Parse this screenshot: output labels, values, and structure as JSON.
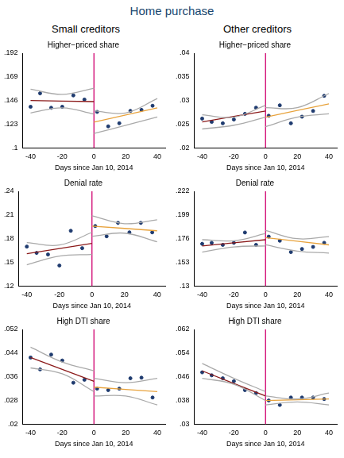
{
  "title": "Home purchase",
  "column_titles": [
    "Small creditors",
    "Other creditors"
  ],
  "chart_data": [
    {
      "type": "scatter",
      "title": "Higher−priced share",
      "x_label": "Days since Jan 10, 2014",
      "xlim": [
        -45,
        45
      ],
      "xticks": [
        -40,
        -20,
        0,
        20,
        40
      ],
      "ylim": [
        0.1,
        0.192
      ],
      "yticks": [
        {
          "value": 0.1,
          "label": ".1"
        },
        {
          "value": 0.123,
          "label": ".123"
        },
        {
          "value": 0.146,
          "label": ".146"
        },
        {
          "value": 0.169,
          "label": ".169"
        },
        {
          "value": 0.192,
          "label": ".192"
        }
      ],
      "grid": false,
      "series": [
        {
          "type": "line",
          "color": "#aaaaaa",
          "line_style": "solid",
          "x": [
            -40,
            -20,
            0
          ],
          "values": [
            0.157,
            0.152,
            0.158
          ]
        },
        {
          "type": "line",
          "color": "#aaaaaa",
          "line_style": "solid",
          "x": [
            -40,
            -20,
            0
          ],
          "values": [
            0.134,
            0.139,
            0.133
          ]
        },
        {
          "type": "line",
          "color": "#aaaaaa",
          "line_style": "solid",
          "x": [
            0,
            20,
            40
          ],
          "values": [
            0.136,
            0.134,
            0.148
          ]
        },
        {
          "type": "line",
          "color": "#aaaaaa",
          "line_style": "solid",
          "x": [
            0,
            20,
            40
          ],
          "values": [
            0.114,
            0.122,
            0.13
          ]
        },
        {
          "type": "line",
          "color": "#8b1a1a",
          "line_style": "solid",
          "x": [
            -40,
            0
          ],
          "values": [
            0.146,
            0.145
          ]
        },
        {
          "type": "line",
          "color": "#e8a33d",
          "line_style": "solid",
          "x": [
            0,
            40
          ],
          "values": [
            0.125,
            0.139
          ]
        },
        {
          "type": "line",
          "color": "#d0006f",
          "line_style": "solid",
          "x": [
            0,
            0
          ],
          "values": [
            0.1,
            0.192
          ]
        },
        {
          "type": "scatter",
          "color": "#1f3b6f",
          "marker": "circle",
          "x": [
            -40,
            -34,
            -27,
            -20,
            -13,
            -6,
            2,
            9,
            16,
            23,
            30,
            37
          ],
          "values": [
            0.14,
            0.153,
            0.139,
            0.14,
            0.151,
            0.147,
            0.135,
            0.121,
            0.124,
            0.136,
            0.137,
            0.141
          ]
        }
      ]
    },
    {
      "type": "scatter",
      "title": "Higher−priced share",
      "x_label": "Days since Jan 10, 2014",
      "xlim": [
        -45,
        45
      ],
      "xticks": [
        -40,
        -20,
        0,
        20,
        40
      ],
      "ylim": [
        0.02,
        0.04
      ],
      "yticks": [
        {
          "value": 0.02,
          "label": ".02"
        },
        {
          "value": 0.025,
          "label": ".025"
        },
        {
          "value": 0.03,
          "label": ".03"
        },
        {
          "value": 0.035,
          "label": ".035"
        },
        {
          "value": 0.04,
          "label": ".04"
        }
      ],
      "grid": false,
      "series": [
        {
          "type": "line",
          "color": "#aaaaaa",
          "line_style": "solid",
          "x": [
            -40,
            -20,
            0
          ],
          "values": [
            0.027,
            0.0265,
            0.029
          ]
        },
        {
          "type": "line",
          "color": "#aaaaaa",
          "line_style": "solid",
          "x": [
            -40,
            -20,
            0
          ],
          "values": [
            0.024,
            0.0248,
            0.0265
          ]
        },
        {
          "type": "line",
          "color": "#aaaaaa",
          "line_style": "solid",
          "x": [
            0,
            20,
            40
          ],
          "values": [
            0.0285,
            0.0285,
            0.0315
          ]
        },
        {
          "type": "line",
          "color": "#aaaaaa",
          "line_style": "solid",
          "x": [
            0,
            20,
            40
          ],
          "values": [
            0.0245,
            0.0265,
            0.0272
          ]
        },
        {
          "type": "line",
          "color": "#8b1a1a",
          "line_style": "solid",
          "x": [
            -40,
            0
          ],
          "values": [
            0.0255,
            0.0278
          ]
        },
        {
          "type": "line",
          "color": "#e8a33d",
          "line_style": "solid",
          "x": [
            0,
            40
          ],
          "values": [
            0.0265,
            0.0293
          ]
        },
        {
          "type": "line",
          "color": "#d0006f",
          "line_style": "solid",
          "x": [
            0,
            0
          ],
          "values": [
            0.02,
            0.04
          ]
        },
        {
          "type": "scatter",
          "color": "#1f3b6f",
          "marker": "circle",
          "x": [
            -40,
            -34,
            -27,
            -20,
            -13,
            -6,
            2,
            9,
            16,
            23,
            30,
            37
          ],
          "values": [
            0.0262,
            0.0255,
            0.0252,
            0.026,
            0.0272,
            0.0285,
            0.0268,
            0.029,
            0.0252,
            0.0266,
            0.0278,
            0.031
          ]
        }
      ]
    },
    {
      "type": "scatter",
      "title": "Denial rate",
      "x_label": "Days since Jan 10, 2014",
      "xlim": [
        -45,
        45
      ],
      "xticks": [
        -40,
        -20,
        0,
        20,
        40
      ],
      "ylim": [
        0.12,
        0.24
      ],
      "yticks": [
        {
          "value": 0.12,
          "label": ".12"
        },
        {
          "value": 0.15,
          "label": ".15"
        },
        {
          "value": 0.18,
          "label": ".18"
        },
        {
          "value": 0.21,
          "label": ".21"
        },
        {
          "value": 0.24,
          "label": ".24"
        }
      ],
      "grid": false,
      "series": [
        {
          "type": "line",
          "color": "#aaaaaa",
          "line_style": "solid",
          "x": [
            -40,
            -20,
            0
          ],
          "values": [
            0.175,
            0.172,
            0.188
          ]
        },
        {
          "type": "line",
          "color": "#aaaaaa",
          "line_style": "solid",
          "x": [
            -40,
            -20,
            0
          ],
          "values": [
            0.147,
            0.158,
            0.16
          ]
        },
        {
          "type": "line",
          "color": "#aaaaaa",
          "line_style": "solid",
          "x": [
            0,
            20,
            40
          ],
          "values": [
            0.209,
            0.199,
            0.204
          ]
        },
        {
          "type": "line",
          "color": "#aaaaaa",
          "line_style": "solid",
          "x": [
            0,
            20,
            40
          ],
          "values": [
            0.183,
            0.187,
            0.176
          ]
        },
        {
          "type": "line",
          "color": "#8b1a1a",
          "line_style": "solid",
          "x": [
            -40,
            0
          ],
          "values": [
            0.161,
            0.174
          ]
        },
        {
          "type": "line",
          "color": "#e8a33d",
          "line_style": "solid",
          "x": [
            0,
            40
          ],
          "values": [
            0.196,
            0.19
          ]
        },
        {
          "type": "line",
          "color": "#d0006f",
          "line_style": "solid",
          "x": [
            0,
            0
          ],
          "values": [
            0.12,
            0.24
          ]
        },
        {
          "type": "scatter",
          "color": "#1f3b6f",
          "marker": "circle",
          "x": [
            -40,
            -34,
            -27,
            -20,
            -13,
            -6,
            2,
            9,
            16,
            23,
            30,
            37
          ],
          "values": [
            0.17,
            0.162,
            0.16,
            0.146,
            0.19,
            0.168,
            0.196,
            0.183,
            0.2,
            0.188,
            0.2,
            0.188
          ]
        }
      ]
    },
    {
      "type": "scatter",
      "title": "Denial rate",
      "x_label": "Days since Jan 10, 2014",
      "xlim": [
        -45,
        45
      ],
      "xticks": [
        -40,
        -20,
        0,
        20,
        40
      ],
      "ylim": [
        0.13,
        0.222
      ],
      "yticks": [
        {
          "value": 0.13,
          "label": ".13"
        },
        {
          "value": 0.153,
          "label": ".153"
        },
        {
          "value": 0.176,
          "label": ".176"
        },
        {
          "value": 0.199,
          "label": ".199"
        },
        {
          "value": 0.222,
          "label": ".222"
        }
      ],
      "grid": false,
      "series": [
        {
          "type": "line",
          "color": "#aaaaaa",
          "line_style": "solid",
          "x": [
            -40,
            -20,
            0
          ],
          "values": [
            0.175,
            0.174,
            0.181
          ]
        },
        {
          "type": "line",
          "color": "#aaaaaa",
          "line_style": "solid",
          "x": [
            -40,
            -20,
            0
          ],
          "values": [
            0.163,
            0.168,
            0.169
          ]
        },
        {
          "type": "line",
          "color": "#aaaaaa",
          "line_style": "solid",
          "x": [
            0,
            20,
            40
          ],
          "values": [
            0.184,
            0.176,
            0.178
          ]
        },
        {
          "type": "line",
          "color": "#aaaaaa",
          "line_style": "solid",
          "x": [
            0,
            20,
            40
          ],
          "values": [
            0.17,
            0.164,
            0.162
          ]
        },
        {
          "type": "line",
          "color": "#8b1a1a",
          "line_style": "solid",
          "x": [
            -40,
            0
          ],
          "values": [
            0.169,
            0.175
          ]
        },
        {
          "type": "line",
          "color": "#e8a33d",
          "line_style": "solid",
          "x": [
            0,
            40
          ],
          "values": [
            0.177,
            0.17
          ]
        },
        {
          "type": "line",
          "color": "#d0006f",
          "line_style": "solid",
          "x": [
            0,
            0
          ],
          "values": [
            0.13,
            0.222
          ]
        },
        {
          "type": "scatter",
          "color": "#1f3b6f",
          "marker": "circle",
          "x": [
            -40,
            -34,
            -27,
            -20,
            -13,
            -6,
            2,
            9,
            16,
            23,
            30,
            37
          ],
          "values": [
            0.171,
            0.172,
            0.17,
            0.172,
            0.182,
            0.17,
            0.178,
            0.174,
            0.163,
            0.166,
            0.168,
            0.172
          ]
        }
      ]
    },
    {
      "type": "scatter",
      "title": "High DTI share",
      "x_label": "Days since Jan 10, 2014",
      "xlim": [
        -45,
        45
      ],
      "xticks": [
        -40,
        -20,
        0,
        20,
        40
      ],
      "ylim": [
        0.02,
        0.052
      ],
      "yticks": [
        {
          "value": 0.02,
          "label": ".02"
        },
        {
          "value": 0.028,
          "label": ".028"
        },
        {
          "value": 0.036,
          "label": ".036"
        },
        {
          "value": 0.044,
          "label": ".044"
        },
        {
          "value": 0.052,
          "label": ".052"
        }
      ],
      "grid": false,
      "series": [
        {
          "type": "line",
          "color": "#aaaaaa",
          "line_style": "solid",
          "x": [
            -40,
            -20,
            0
          ],
          "values": [
            0.046,
            0.041,
            0.038
          ]
        },
        {
          "type": "line",
          "color": "#aaaaaa",
          "line_style": "solid",
          "x": [
            -40,
            -20,
            0
          ],
          "values": [
            0.039,
            0.037,
            0.031
          ]
        },
        {
          "type": "line",
          "color": "#aaaaaa",
          "line_style": "solid",
          "x": [
            0,
            20,
            40
          ],
          "values": [
            0.0355,
            0.034,
            0.0355
          ]
        },
        {
          "type": "line",
          "color": "#aaaaaa",
          "line_style": "solid",
          "x": [
            0,
            20,
            40
          ],
          "values": [
            0.0295,
            0.0295,
            0.0265
          ]
        },
        {
          "type": "line",
          "color": "#8b1a1a",
          "line_style": "solid",
          "x": [
            -40,
            0
          ],
          "values": [
            0.0425,
            0.0345
          ]
        },
        {
          "type": "line",
          "color": "#e8a33d",
          "line_style": "solid",
          "x": [
            0,
            40
          ],
          "values": [
            0.0325,
            0.031
          ]
        },
        {
          "type": "line",
          "color": "#d0006f",
          "line_style": "solid",
          "x": [
            0,
            0
          ],
          "values": [
            0.02,
            0.052
          ]
        },
        {
          "type": "scatter",
          "color": "#1f3b6f",
          "marker": "circle",
          "x": [
            -40,
            -34,
            -27,
            -20,
            -13,
            -6,
            2,
            9,
            16,
            23,
            30,
            37
          ],
          "values": [
            0.0425,
            0.0385,
            0.0435,
            0.0415,
            0.034,
            0.035,
            0.032,
            0.0315,
            0.032,
            0.0355,
            0.0357,
            0.029
          ]
        }
      ]
    },
    {
      "type": "scatter",
      "title": "High DTI share",
      "x_label": "Days since Jan 10, 2014",
      "xlim": [
        -45,
        45
      ],
      "xticks": [
        -40,
        -20,
        0,
        20,
        40
      ],
      "ylim": [
        0.03,
        0.062
      ],
      "yticks": [
        {
          "value": 0.03,
          "label": ".03"
        },
        {
          "value": 0.038,
          "label": ".038"
        },
        {
          "value": 0.046,
          "label": ".046"
        },
        {
          "value": 0.054,
          "label": ".054"
        },
        {
          "value": 0.062,
          "label": ".062"
        }
      ],
      "grid": false,
      "series": [
        {
          "type": "line",
          "color": "#aaaaaa",
          "line_style": "solid",
          "x": [
            -40,
            -20,
            0
          ],
          "values": [
            0.0505,
            0.0455,
            0.041
          ]
        },
        {
          "type": "line",
          "color": "#aaaaaa",
          "line_style": "solid",
          "x": [
            -40,
            -20,
            0
          ],
          "values": [
            0.0455,
            0.0435,
            0.038
          ]
        },
        {
          "type": "line",
          "color": "#aaaaaa",
          "line_style": "solid",
          "x": [
            0,
            20,
            40
          ],
          "values": [
            0.0395,
            0.0385,
            0.0405
          ]
        },
        {
          "type": "line",
          "color": "#aaaaaa",
          "line_style": "solid",
          "x": [
            0,
            20,
            40
          ],
          "values": [
            0.0365,
            0.0375,
            0.0365
          ]
        },
        {
          "type": "line",
          "color": "#8b1a1a",
          "line_style": "solid",
          "x": [
            -40,
            0
          ],
          "values": [
            0.048,
            0.0395
          ]
        },
        {
          "type": "line",
          "color": "#e8a33d",
          "line_style": "solid",
          "x": [
            0,
            40
          ],
          "values": [
            0.038,
            0.0385
          ]
        },
        {
          "type": "line",
          "color": "#d0006f",
          "line_style": "solid",
          "x": [
            0,
            0
          ],
          "values": [
            0.03,
            0.062
          ]
        },
        {
          "type": "scatter",
          "color": "#1f3b6f",
          "marker": "circle",
          "x": [
            -40,
            -34,
            -27,
            -20,
            -13,
            -6,
            2,
            9,
            16,
            23,
            30,
            37
          ],
          "values": [
            0.0475,
            0.0465,
            0.0455,
            0.0445,
            0.0415,
            0.0405,
            0.038,
            0.0365,
            0.039,
            0.039,
            0.039,
            0.0385
          ]
        }
      ]
    }
  ]
}
